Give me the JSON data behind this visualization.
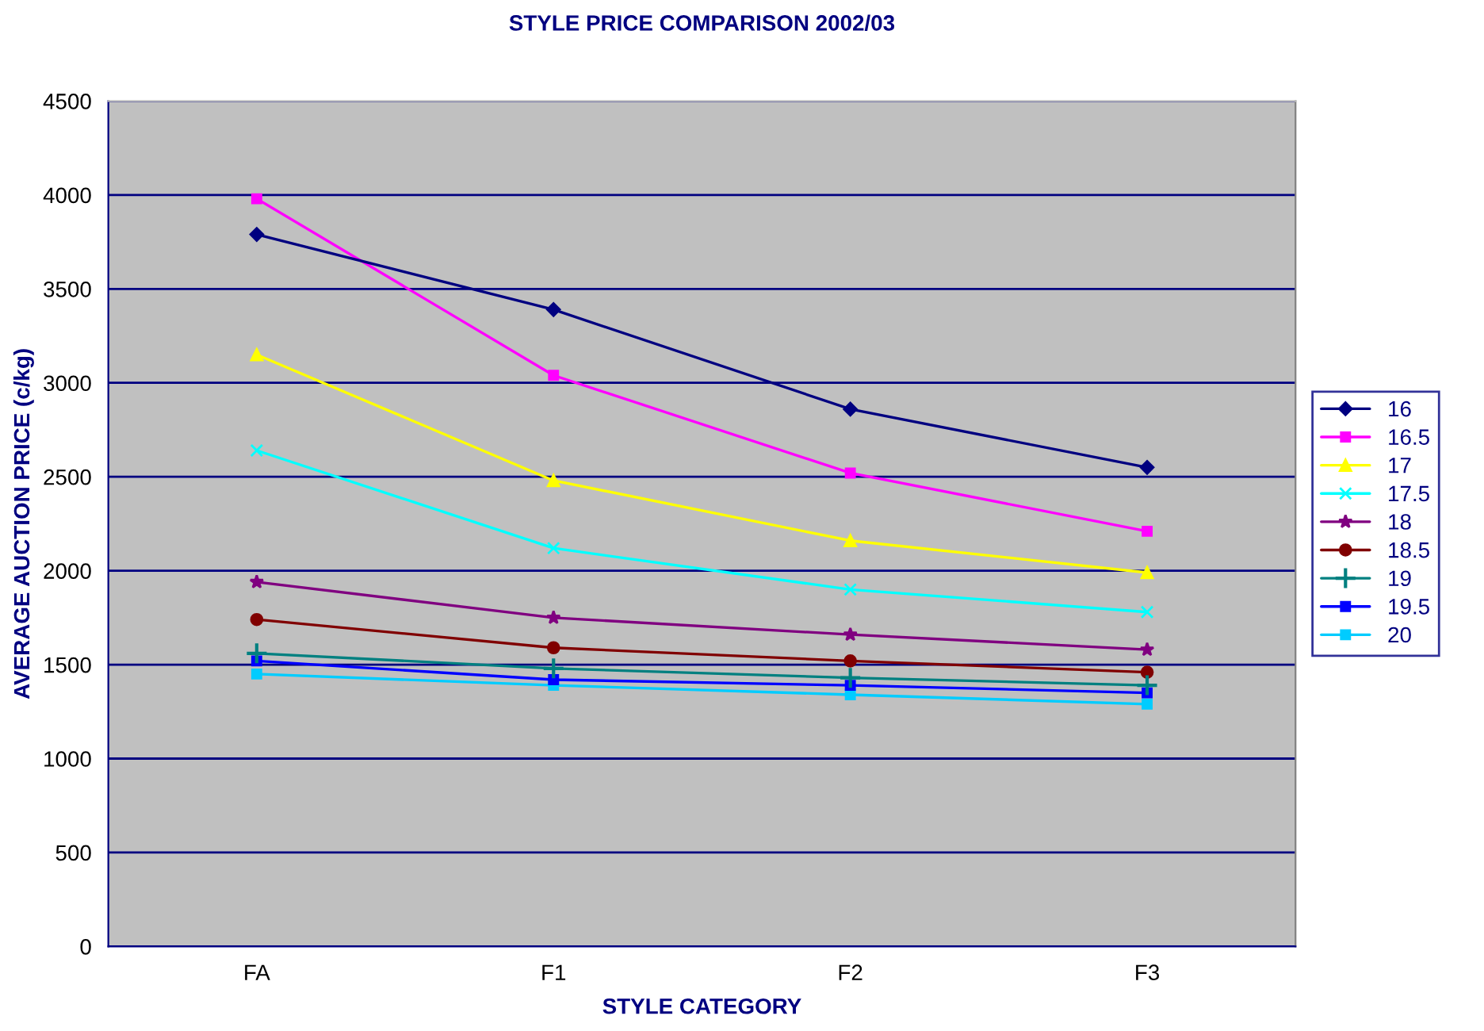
{
  "chart_data": {
    "type": "line",
    "title": "STYLE PRICE COMPARISON 2002/03",
    "xlabel": "STYLE CATEGORY",
    "ylabel": "AVERAGE AUCTION PRICE (c/kg)",
    "categories": [
      "FA",
      "F1",
      "F2",
      "F3"
    ],
    "series": [
      {
        "name": "16",
        "color": "#000080",
        "marker": "diamond",
        "values": [
          3790,
          3390,
          2860,
          2550
        ]
      },
      {
        "name": "16.5",
        "color": "#ff00ff",
        "marker": "square",
        "values": [
          3980,
          3040,
          2520,
          2210
        ]
      },
      {
        "name": "17",
        "color": "#ffff00",
        "marker": "triangle",
        "values": [
          3150,
          2480,
          2160,
          1990
        ]
      },
      {
        "name": "17.5",
        "color": "#00ffff",
        "marker": "cross",
        "values": [
          2640,
          2120,
          1900,
          1780
        ]
      },
      {
        "name": "18",
        "color": "#800080",
        "marker": "star",
        "values": [
          1940,
          1750,
          1660,
          1580
        ]
      },
      {
        "name": "18.5",
        "color": "#800000",
        "marker": "circle",
        "values": [
          1740,
          1590,
          1520,
          1460
        ]
      },
      {
        "name": "19",
        "color": "#008080",
        "marker": "plus",
        "values": [
          1560,
          1480,
          1430,
          1390
        ]
      },
      {
        "name": "19.5",
        "color": "#0000ff",
        "marker": "square",
        "values": [
          1520,
          1420,
          1390,
          1350
        ]
      },
      {
        "name": "20",
        "color": "#00ccff",
        "marker": "square",
        "values": [
          1450,
          1390,
          1340,
          1290
        ]
      }
    ],
    "ylim": [
      0,
      4500
    ],
    "yticks": [
      0,
      500,
      1000,
      1500,
      2000,
      2500,
      3000,
      3500,
      4000,
      4500
    ],
    "grid": "y",
    "legend": "right",
    "line_style": "solid"
  }
}
